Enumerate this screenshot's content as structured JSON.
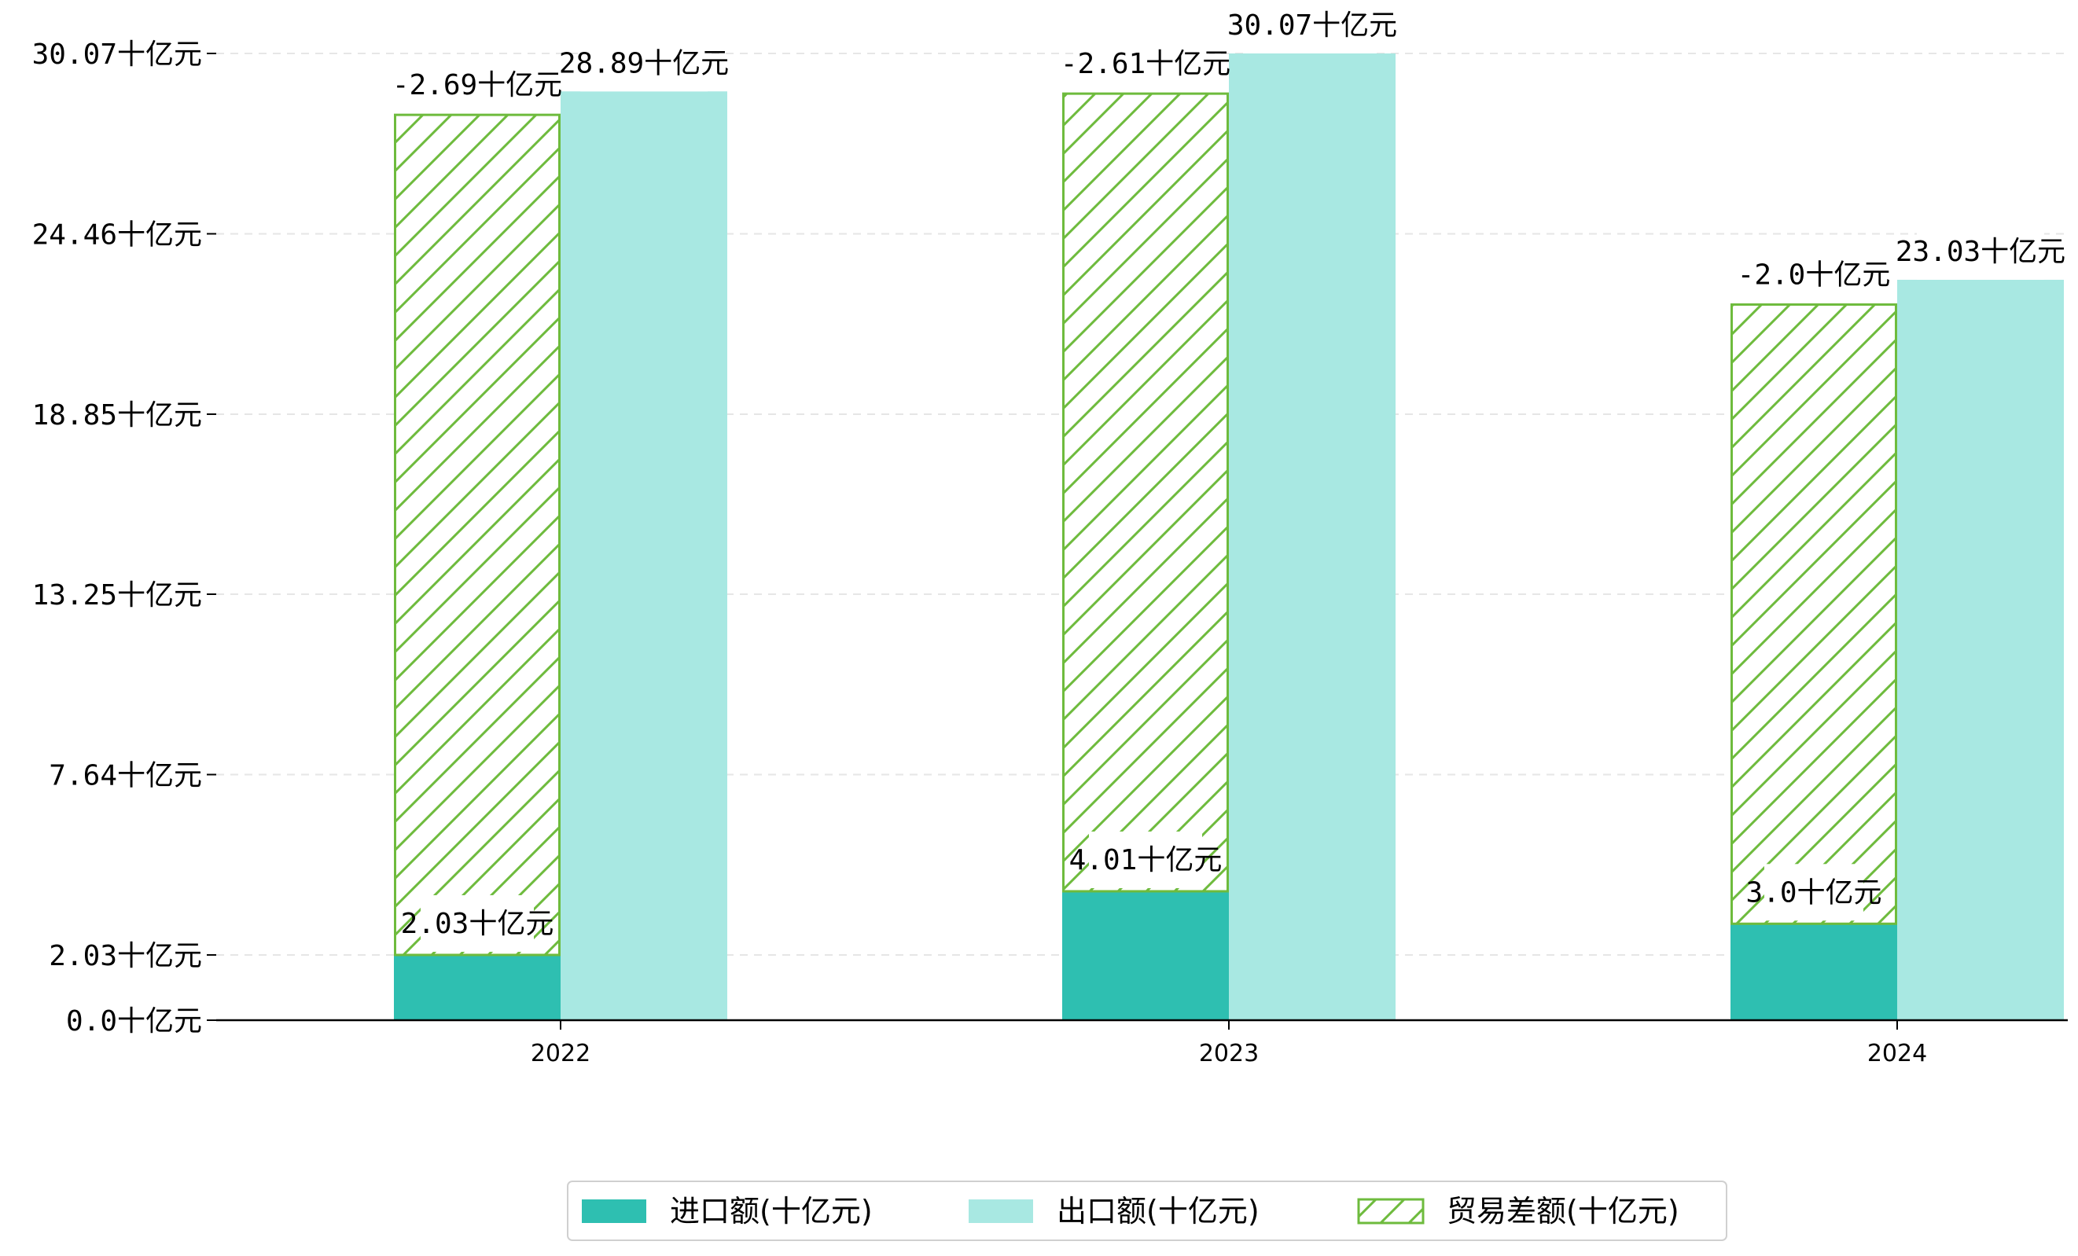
{
  "chart_data": {
    "type": "bar",
    "categories": [
      "2022",
      "2023",
      "2024"
    ],
    "series": [
      {
        "name": "进口额(十亿元)",
        "values": [
          2.03,
          4.01,
          3.0
        ],
        "labels": [
          "2.03十亿元",
          "4.01十亿元",
          "3.0十亿元"
        ],
        "color": "#2ebfb1",
        "stack_base": true
      },
      {
        "name": "贸易差额(十亿元)",
        "values": [
          -2.69,
          -2.61,
          -2.0
        ],
        "display_top": [
          28.16,
          28.82,
          22.26
        ],
        "labels": [
          "-2.69十亿元",
          "-2.61十亿元",
          "-2.0十亿元"
        ],
        "color": "#6ebb3d",
        "hatch": true
      },
      {
        "name": "出口额(十亿元)",
        "values": [
          28.89,
          30.07,
          23.03
        ],
        "labels": [
          "28.89十亿元",
          "30.07十亿元",
          "23.03十亿元"
        ],
        "color": "#a8e8e2"
      }
    ],
    "yticks": [
      0.0,
      2.03,
      7.64,
      13.25,
      18.85,
      24.46,
      30.07
    ],
    "ytick_labels": [
      "0.0十亿元",
      "2.03十亿元",
      "7.64十亿元",
      "13.25十亿元",
      "18.85十亿元",
      "24.46十亿元",
      "30.07十亿元"
    ],
    "ylim": [
      0,
      30.07
    ],
    "grid": "horizontal-dashed",
    "legend_position": "bottom-center"
  }
}
